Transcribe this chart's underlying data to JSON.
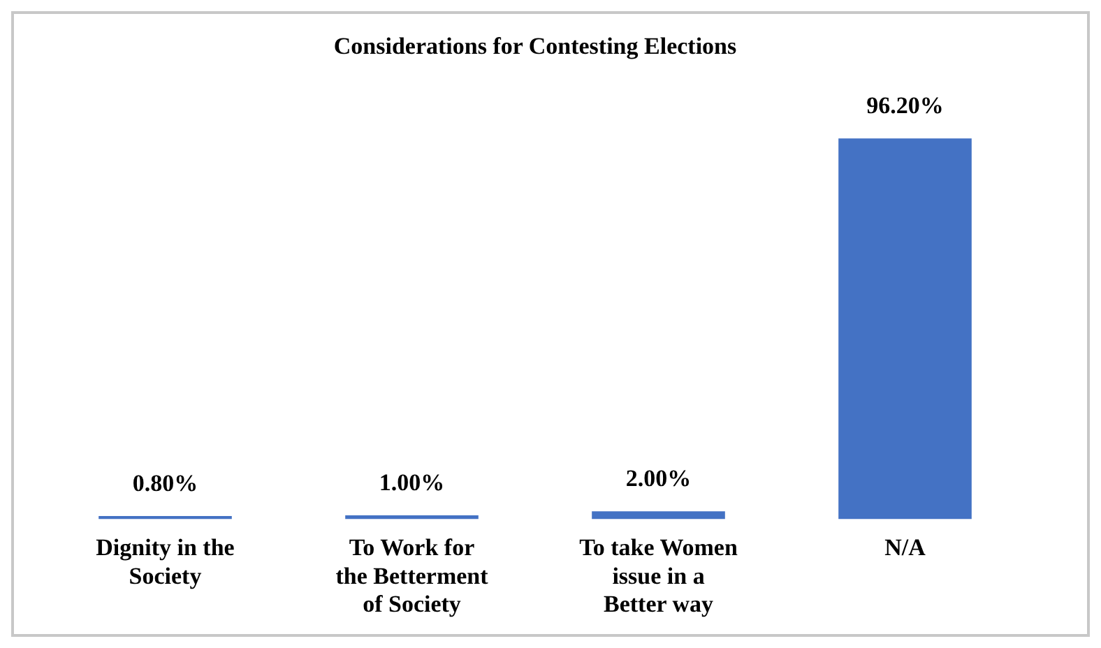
{
  "chart_data": {
    "type": "bar",
    "title": "Considerations for Contesting Elections",
    "categories": [
      "Dignity in the Society",
      "To Work for the Betterment of Society",
      "To take Women issue in a Better way",
      "N/A"
    ],
    "values": [
      0.8,
      1.0,
      2.0,
      96.2
    ],
    "value_labels": [
      "0.80%",
      "1.00%",
      "2.00%",
      "96.20%"
    ],
    "color": "#4472c4"
  }
}
